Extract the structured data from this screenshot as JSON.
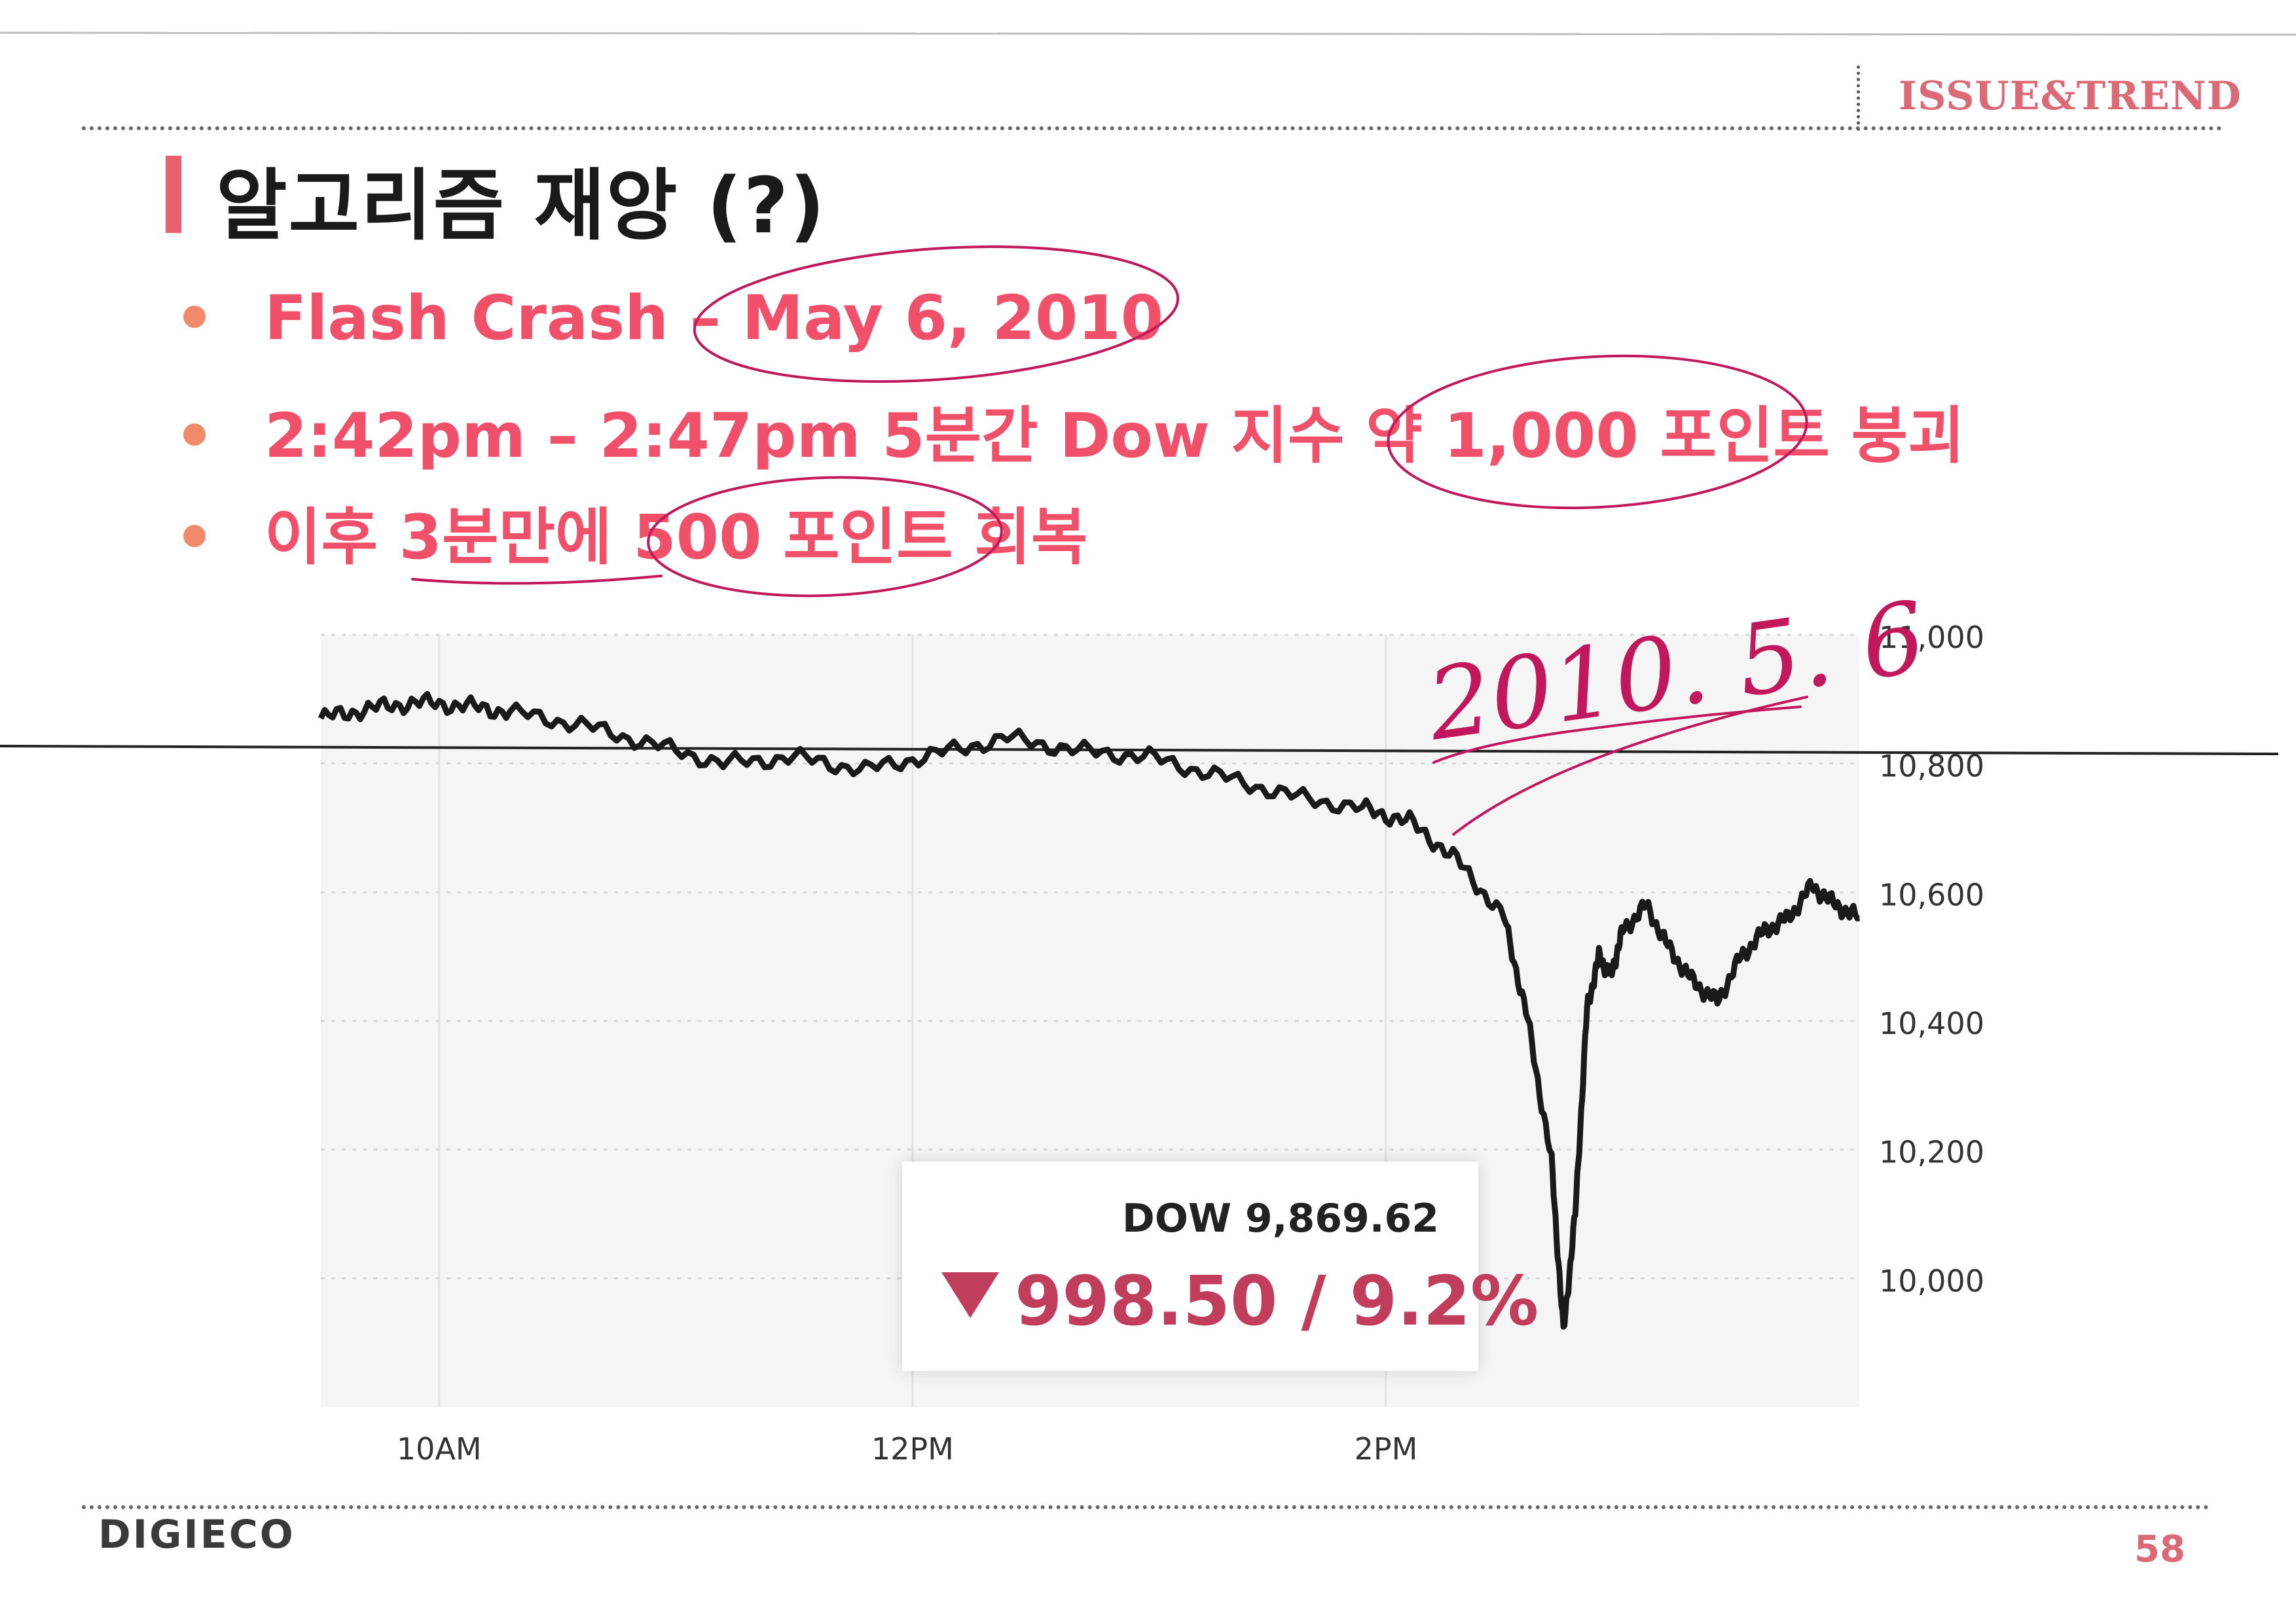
{
  "header": {
    "tag": "ISSUE&TREND"
  },
  "slide": {
    "title": "알고리즘 재앙 (?)",
    "bullets": [
      "Flash Crash – May 6, 2010",
      "2:42pm – 2:47pm 5분간 Dow 지수 약 1,000 포인트 붕괴",
      "이후 3분만에 500 포인트 회복"
    ]
  },
  "annotation": {
    "handwritten_date": "2010. 5. 6",
    "ink_color": "#c0185a"
  },
  "callout": {
    "label": "DOW 9,869.62",
    "change": "998.50 / 9.2%",
    "color": "#c03e5c"
  },
  "chart_data": {
    "type": "line",
    "x_ticks": [
      "10AM",
      "12PM",
      "2PM"
    ],
    "y_ticks": [
      "11,000",
      "10,800",
      "10,600",
      "10,400",
      "10,200",
      "10,000"
    ],
    "ylim": [
      9800,
      11000
    ],
    "xlim_hours": [
      9.5,
      16.0
    ],
    "series": [
      {
        "x": [
          9.5,
          9.7,
          9.9,
          10.1,
          10.3,
          10.6,
          10.9,
          11.2,
          11.5,
          11.8,
          12.1,
          12.4,
          12.7,
          13.0,
          13.3,
          13.6,
          13.9,
          14.1,
          14.3,
          14.5,
          14.6,
          14.7,
          14.75,
          14.8,
          14.85,
          14.9,
          14.95,
          15.0,
          15.1,
          15.2,
          15.3,
          15.4,
          15.5,
          15.6,
          15.7,
          15.8,
          15.9,
          16.0
        ],
        "y": [
          10870,
          10885,
          10895,
          10890,
          10880,
          10860,
          10830,
          10800,
          10810,
          10790,
          10815,
          10840,
          10820,
          10810,
          10780,
          10750,
          10730,
          10710,
          10650,
          10560,
          10400,
          10180,
          9915,
          10100,
          10420,
          10500,
          10470,
          10540,
          10580,
          10510,
          10460,
          10430,
          10500,
          10540,
          10560,
          10610,
          10580,
          10560
        ]
      }
    ]
  },
  "footer": {
    "logo": "DIGIECO",
    "page": "58"
  }
}
